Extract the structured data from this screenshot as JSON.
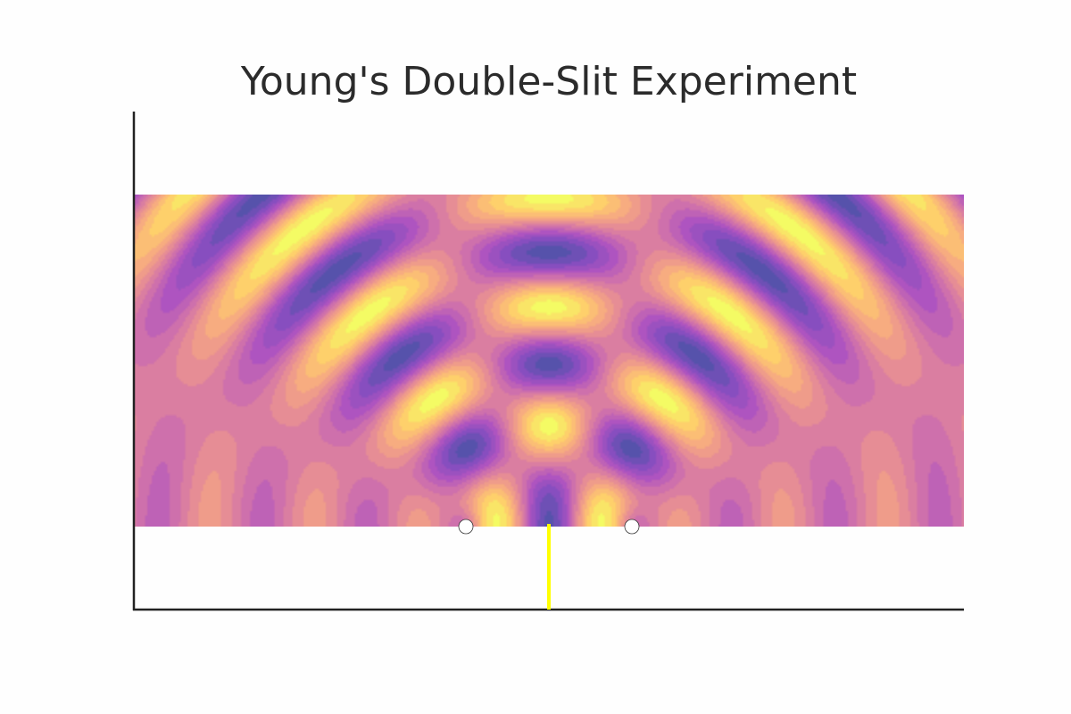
{
  "title": "Young's Double-Slit Experiment",
  "chart_data": {
    "type": "heatmap",
    "title": "Young's Double-Slit Experiment",
    "xlabel": "",
    "ylabel": "",
    "axes": "left and bottom spines only, no ticks",
    "field": "interference of two circular waves emitted from the two slits",
    "field_xlim": [
      -5,
      5
    ],
    "field_ylim": [
      0,
      4
    ],
    "axis_xlim": [
      -5,
      5
    ],
    "axis_ylim": [
      -1,
      5
    ],
    "slits": [
      {
        "x": -1,
        "y": 0
      },
      {
        "x": 1,
        "y": 0
      }
    ],
    "barrier": {
      "x": 0,
      "y_from": -1,
      "y_to": 0
    },
    "wavenumber": 5.0,
    "colormap": "plasma (semi-transparent)",
    "colors": {
      "barrier": "#ffff00",
      "slit_marker_face": "#ffffff",
      "slit_marker_edge": "#333333",
      "axis": "#222222"
    }
  }
}
